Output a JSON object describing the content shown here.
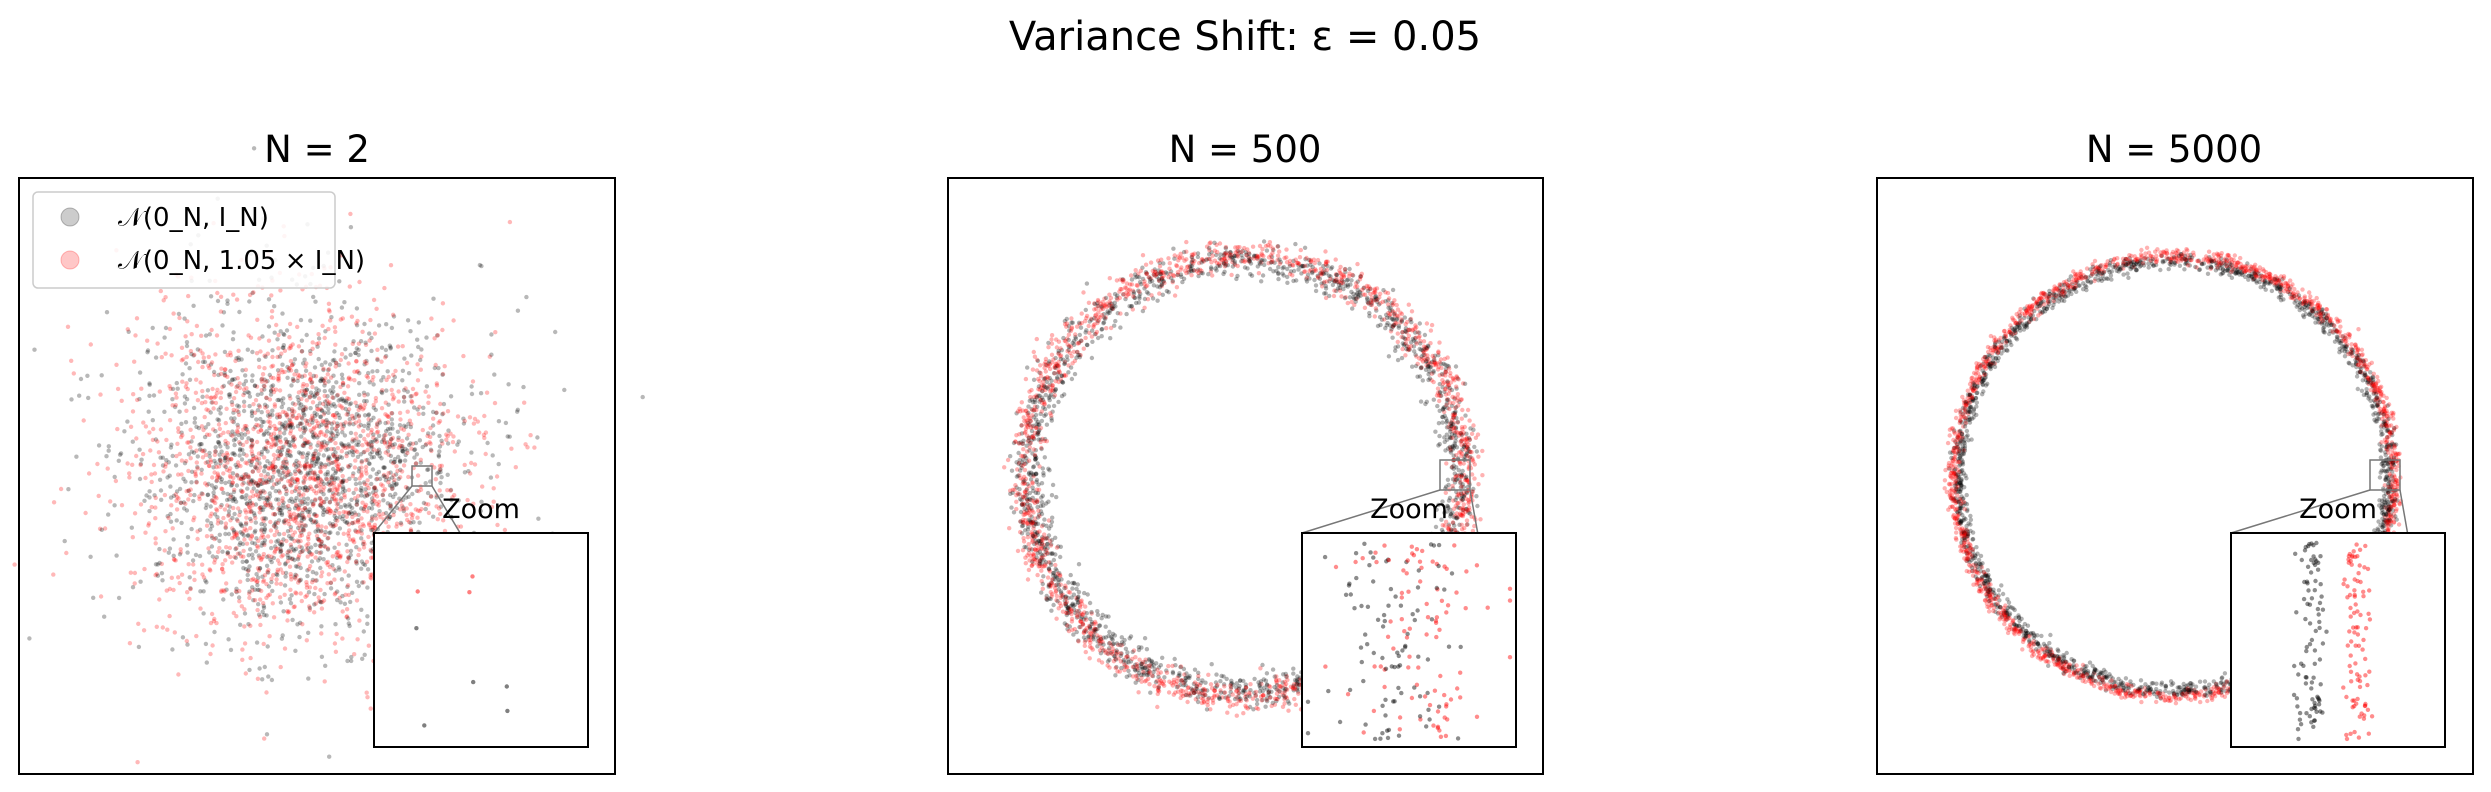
{
  "figure": {
    "title": "Variance Shift: ε = 0.05"
  },
  "colors": {
    "baseline": "#000000",
    "shifted": "#ff0000",
    "inset_connector": "#777777"
  },
  "legend": {
    "placement": "upper-left of first panel",
    "entries": [
      {
        "label": "𝒩(0_N, I_N)",
        "color": "#808080"
      },
      {
        "label": "𝒩(0_N, 1.05 × I_N)",
        "color": "#ff9999"
      }
    ]
  },
  "chart_data": [
    {
      "type": "scatter",
      "title": "N = 2",
      "dimension": 2,
      "axes_visible": false,
      "series": [
        {
          "name": "𝒩(0_N, I_N)",
          "color": "#000000",
          "variance": 1.0
        },
        {
          "name": "𝒩(0_N, 1.05 × I_N)",
          "color": "#ff0000",
          "variance": 1.05
        }
      ],
      "inset": {
        "label": "Zoom"
      }
    },
    {
      "type": "scatter",
      "title": "N = 500",
      "dimension": 500,
      "axes_visible": false,
      "series": [
        {
          "name": "𝒩(0_N, I_N)",
          "color": "#000000",
          "variance": 1.0
        },
        {
          "name": "𝒩(0_N, 1.05 × I_N)",
          "color": "#ff0000",
          "variance": 1.05
        }
      ],
      "inset": {
        "label": "Zoom"
      }
    },
    {
      "type": "scatter",
      "title": "N = 5000",
      "dimension": 5000,
      "axes_visible": false,
      "series": [
        {
          "name": "𝒩(0_N, I_N)",
          "color": "#000000",
          "variance": 1.0
        },
        {
          "name": "𝒩(0_N, 1.05 × I_N)",
          "color": "#ff0000",
          "variance": 1.05
        }
      ],
      "inset": {
        "label": "Zoom"
      }
    }
  ]
}
